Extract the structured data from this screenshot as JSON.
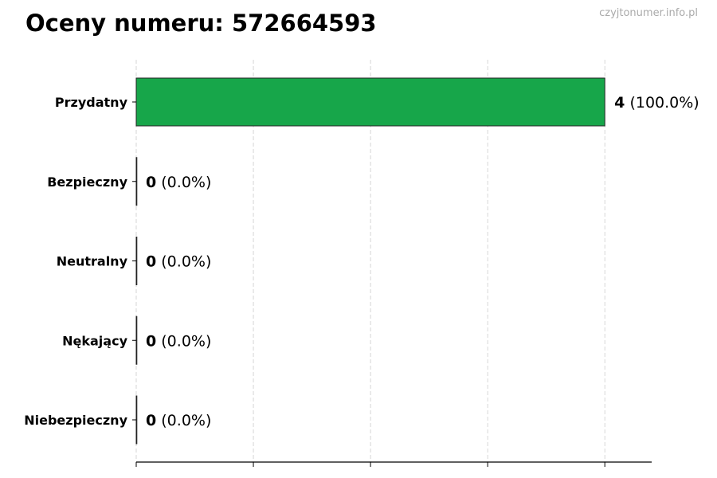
{
  "title": "Oceny numeru: 572664593",
  "watermark": "czyjtonumer.info.pl",
  "chart_data": {
    "type": "bar",
    "orientation": "horizontal",
    "title": "Oceny numeru: 572664593",
    "categories": [
      "Przydatny",
      "Bezpieczny",
      "Neutralny",
      "Nękający",
      "Niebezpieczny"
    ],
    "values": [
      4,
      0,
      0,
      0,
      0
    ],
    "percent_labels": [
      "(100.0%)",
      "(0.0%)",
      "(0.0%)",
      "(0.0%)",
      "(0.0%)"
    ],
    "colors": [
      "#17a64a",
      "#17a64a",
      "#17a64a",
      "#17a64a",
      "#17a64a"
    ],
    "xlim": [
      0,
      4.4
    ],
    "xticks": [
      0,
      1,
      2,
      3,
      4
    ],
    "xtick_labels_shown": false,
    "grid": "x, dashed",
    "xlabel": "",
    "ylabel": ""
  }
}
